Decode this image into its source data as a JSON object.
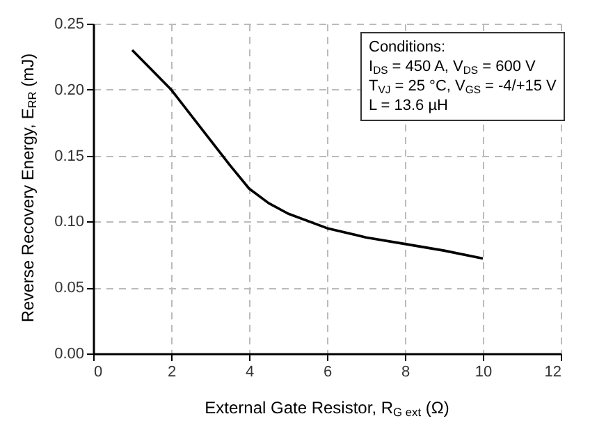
{
  "chart_data": {
    "type": "line",
    "xlabel": "External Gate Resistor, R$_{G ext}$ (Ω)",
    "ylabel": "Reverse Recovery Energy, E$_{RR}$ (mJ)",
    "x": [
      1,
      2,
      3,
      3.5,
      4,
      4.5,
      5,
      6,
      7,
      8,
      9,
      10
    ],
    "series": [
      {
        "color": "#000000",
        "values": [
          0.23,
          0.2,
          0.162,
          0.143,
          0.125,
          0.114,
          0.106,
          0.095,
          0.088,
          0.083,
          0.078,
          0.072
        ]
      }
    ],
    "xlim": [
      0,
      12
    ],
    "xticks": [
      0,
      2,
      4,
      6,
      8,
      10,
      12
    ],
    "ylim": [
      0,
      0.25
    ],
    "yticks": [
      {
        "value": 0,
        "label": "0.00"
      },
      {
        "value": 0.05,
        "label": "0.05"
      },
      {
        "value": 0.1,
        "label": "0.10"
      },
      {
        "value": 0.15,
        "label": "0.15"
      },
      {
        "value": 0.2,
        "label": "0.20"
      },
      {
        "value": 0.25,
        "label": "0.25"
      }
    ],
    "grid": true,
    "annotations": [
      "Conditions:",
      "I$_{DS}$ = 450 A, V$_{DS}$ = 600 V",
      "T$_{VJ}$ = 25 °C, V$_{GS}$ = -4/+15 V",
      "L = 13.6 µH"
    ]
  }
}
